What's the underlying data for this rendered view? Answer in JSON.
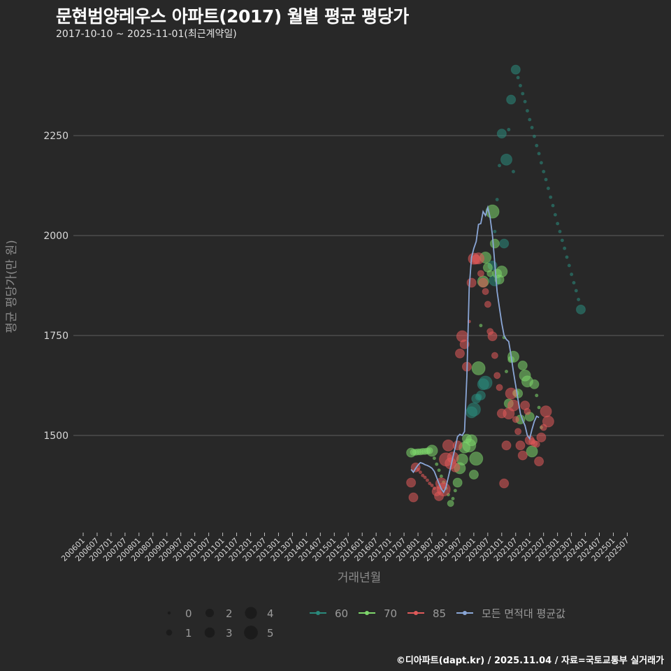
{
  "header": {
    "title": "문현범양레우스 아파트(2017) 월별 평균 평당가",
    "subtitle": "2017-10-10 ~ 2025-11-01(최근계약일)"
  },
  "footer": {
    "credit": "©디아파트(dapt.kr) / 2025.11.04 / 자료=국토교통부 실거래가"
  },
  "colors": {
    "background": "#282828",
    "grid": "#5e5e5e",
    "s60": "#2a8a7c",
    "s70": "#7ed66b",
    "s85": "#e05a5a",
    "mean": "#8aa6d6"
  },
  "chart_data": {
    "type": "scatter",
    "title": "문현범양레우스 아파트(2017) 월별 평균 평당가",
    "subtitle": "2017-10-10 ~ 2025-11-01(최근계약일)",
    "xlabel": "거래년월",
    "ylabel": "평균 평당가(만 원)",
    "ylim": [
      1270,
      2420
    ],
    "yticks": [
      1500,
      1750,
      2000,
      2250
    ],
    "xticks": [
      "200601",
      "200607",
      "200701",
      "200707",
      "200801",
      "200807",
      "200901",
      "200907",
      "201001",
      "201007",
      "201101",
      "201107",
      "201201",
      "201207",
      "201301",
      "201307",
      "201401",
      "201407",
      "201501",
      "201507",
      "201601",
      "201607",
      "201701",
      "201707",
      "201801",
      "201807",
      "201901",
      "201907",
      "202001",
      "202007",
      "202101",
      "202107",
      "202201",
      "202207",
      "202301",
      "202307",
      "202401",
      "202407",
      "202501",
      "202507"
    ],
    "grid": true,
    "legend": {
      "size_title": "",
      "sizes": [
        0,
        1,
        2,
        3,
        4,
        5
      ],
      "series": [
        "60",
        "70",
        "85",
        "모든 면적대 평균값"
      ]
    },
    "series": [
      {
        "name": "60",
        "points": [
          [
            "2019-12",
            1558,
            3
          ],
          [
            "2020-01",
            1565,
            4
          ],
          [
            "2020-02",
            1592,
            2
          ],
          [
            "2020-03",
            1596,
            1
          ],
          [
            "2020-04",
            1600,
            2
          ],
          [
            "2020-05",
            1628,
            3
          ],
          [
            "2020-06",
            1632,
            4
          ],
          [
            "2020-09",
            1925,
            2
          ],
          [
            "2020-10",
            2010,
            0
          ],
          [
            "2020-11",
            2090,
            0
          ],
          [
            "2020-12",
            2175,
            0
          ],
          [
            "2021-01",
            2255,
            2
          ],
          [
            "2021-02",
            1980,
            2
          ],
          [
            "2021-03",
            2190,
            3
          ],
          [
            "2021-04",
            2265,
            0
          ],
          [
            "2021-05",
            2340,
            2
          ],
          [
            "2021-06",
            2160,
            0
          ],
          [
            "2021-07",
            2415,
            2
          ],
          [
            "2021-08",
            2395,
            0
          ],
          [
            "2021-09",
            2375,
            0
          ],
          [
            "2021-10",
            2355,
            0
          ],
          [
            "2021-11",
            2335,
            0
          ],
          [
            "2021-12",
            2312,
            0
          ],
          [
            "2022-01",
            2290,
            0
          ],
          [
            "2022-02",
            2270,
            0
          ],
          [
            "2022-03",
            2248,
            0
          ],
          [
            "2022-04",
            2225,
            0
          ],
          [
            "2022-05",
            2205,
            0
          ],
          [
            "2022-06",
            2182,
            0
          ],
          [
            "2022-07",
            2160,
            0
          ],
          [
            "2022-08",
            2140,
            0
          ],
          [
            "2022-09",
            2118,
            0
          ],
          [
            "2022-10",
            2096,
            0
          ],
          [
            "2022-11",
            2075,
            0
          ],
          [
            "2022-12",
            2052,
            0
          ],
          [
            "2023-01",
            2030,
            0
          ],
          [
            "2023-02",
            2010,
            0
          ],
          [
            "2023-03",
            1988,
            0
          ],
          [
            "2023-04",
            1968,
            0
          ],
          [
            "2023-05",
            1946,
            0
          ],
          [
            "2023-06",
            1925,
            0
          ],
          [
            "2023-07",
            1903,
            0
          ],
          [
            "2023-08",
            1882,
            0
          ],
          [
            "2023-09",
            1862,
            0
          ],
          [
            "2023-10",
            1840,
            0
          ],
          [
            "2023-11",
            1815,
            2
          ],
          [
            "2020-10",
            1888,
            3
          ]
        ]
      },
      {
        "name": "70",
        "points": [
          [
            "2017-10",
            1457,
            2
          ],
          [
            "2017-11",
            1458,
            1
          ],
          [
            "2017-12",
            1458,
            1
          ],
          [
            "2018-01",
            1459,
            1
          ],
          [
            "2018-02",
            1459,
            1
          ],
          [
            "2018-03",
            1460,
            1
          ],
          [
            "2018-04",
            1460,
            1
          ],
          [
            "2018-05",
            1461,
            1
          ],
          [
            "2018-06",
            1462,
            1
          ],
          [
            "2018-07",
            1462,
            3
          ],
          [
            "2018-08",
            1443,
            0
          ],
          [
            "2018-09",
            1428,
            0
          ],
          [
            "2018-10",
            1413,
            0
          ],
          [
            "2018-11",
            1398,
            0
          ],
          [
            "2018-12",
            1383,
            0
          ],
          [
            "2019-01",
            1368,
            0
          ],
          [
            "2019-02",
            1352,
            0
          ],
          [
            "2019-03",
            1330,
            1
          ],
          [
            "2019-04",
            1342,
            0
          ],
          [
            "2019-05",
            1362,
            0
          ],
          [
            "2019-06",
            1382,
            2
          ],
          [
            "2019-07",
            1418,
            3
          ],
          [
            "2019-08",
            1440,
            3
          ],
          [
            "2019-09",
            1470,
            3
          ],
          [
            "2019-10",
            1492,
            2
          ],
          [
            "2019-11",
            1475,
            4
          ],
          [
            "2019-12",
            1488,
            3
          ],
          [
            "2020-01",
            1402,
            2
          ],
          [
            "2020-02",
            1442,
            4
          ],
          [
            "2020-03",
            1668,
            4
          ],
          [
            "2020-04",
            1775,
            0
          ],
          [
            "2020-05",
            1885,
            3
          ],
          [
            "2020-06",
            1945,
            3
          ],
          [
            "2020-07",
            1920,
            2
          ],
          [
            "2020-08",
            1905,
            1
          ],
          [
            "2020-09",
            2060,
            4
          ],
          [
            "2020-10",
            1980,
            2
          ],
          [
            "2020-11",
            1905,
            2
          ],
          [
            "2020-12",
            1890,
            2
          ],
          [
            "2021-01",
            1910,
            3
          ],
          [
            "2021-02",
            1745,
            0
          ],
          [
            "2021-03",
            1660,
            0
          ],
          [
            "2021-04",
            1580,
            2
          ],
          [
            "2021-05",
            1690,
            1
          ],
          [
            "2021-06",
            1697,
            3
          ],
          [
            "2021-07",
            1606,
            1
          ],
          [
            "2021-08",
            1605,
            2
          ],
          [
            "2021-09",
            1540,
            2
          ],
          [
            "2021-10",
            1675,
            2
          ],
          [
            "2021-11",
            1650,
            3
          ],
          [
            "2021-12",
            1635,
            3
          ],
          [
            "2022-01",
            1547,
            2
          ],
          [
            "2022-02",
            1460,
            3
          ],
          [
            "2022-03",
            1628,
            2
          ],
          [
            "2022-04",
            1600,
            0
          ],
          [
            "2022-05",
            1570,
            0
          ],
          [
            "2022-06",
            1520,
            0
          ]
        ]
      },
      {
        "name": "85",
        "points": [
          [
            "2017-10",
            1382,
            2
          ],
          [
            "2017-11",
            1345,
            2
          ],
          [
            "2017-12",
            1420,
            2
          ],
          [
            "2018-01",
            1415,
            0
          ],
          [
            "2018-02",
            1408,
            0
          ],
          [
            "2018-03",
            1400,
            0
          ],
          [
            "2018-04",
            1395,
            0
          ],
          [
            "2018-05",
            1388,
            0
          ],
          [
            "2018-06",
            1380,
            0
          ],
          [
            "2018-07",
            1375,
            0
          ],
          [
            "2018-08",
            1368,
            0
          ],
          [
            "2018-09",
            1360,
            2
          ],
          [
            "2018-10",
            1348,
            2
          ],
          [
            "2018-11",
            1380,
            3
          ],
          [
            "2018-12",
            1365,
            4
          ],
          [
            "2019-01",
            1440,
            4
          ],
          [
            "2019-02",
            1475,
            3
          ],
          [
            "2019-03",
            1430,
            3
          ],
          [
            "2019-04",
            1445,
            3
          ],
          [
            "2019-05",
            1420,
            2
          ],
          [
            "2019-06",
            1475,
            2
          ],
          [
            "2019-07",
            1705,
            2
          ],
          [
            "2019-08",
            1748,
            3
          ],
          [
            "2019-09",
            1728,
            2
          ],
          [
            "2019-10",
            1672,
            2
          ],
          [
            "2019-11",
            1785,
            0
          ],
          [
            "2019-12",
            1882,
            2
          ],
          [
            "2020-01",
            1942,
            3
          ],
          [
            "2020-02",
            1940,
            2
          ],
          [
            "2020-03",
            1943,
            3
          ],
          [
            "2020-04",
            1905,
            1
          ],
          [
            "2020-05",
            1882,
            2
          ],
          [
            "2020-06",
            1860,
            1
          ],
          [
            "2020-07",
            1828,
            1
          ],
          [
            "2020-08",
            1760,
            1
          ],
          [
            "2020-09",
            1748,
            2
          ],
          [
            "2020-10",
            1700,
            1
          ],
          [
            "2020-11",
            1650,
            1
          ],
          [
            "2020-12",
            1620,
            1
          ],
          [
            "2021-01",
            1555,
            2
          ],
          [
            "2021-02",
            1380,
            2
          ],
          [
            "2021-03",
            1475,
            2
          ],
          [
            "2021-04",
            1555,
            3
          ],
          [
            "2021-05",
            1605,
            3
          ],
          [
            "2021-06",
            1575,
            3
          ],
          [
            "2021-07",
            1540,
            1
          ],
          [
            "2021-08",
            1510,
            1
          ],
          [
            "2021-09",
            1475,
            2
          ],
          [
            "2021-10",
            1450,
            2
          ],
          [
            "2021-11",
            1575,
            2
          ],
          [
            "2021-12",
            1560,
            1
          ],
          [
            "2022-01",
            1488,
            2
          ],
          [
            "2022-02",
            1485,
            1
          ],
          [
            "2022-03",
            1480,
            1
          ],
          [
            "2022-04",
            1478,
            1
          ],
          [
            "2022-05",
            1435,
            2
          ],
          [
            "2022-06",
            1495,
            2
          ],
          [
            "2022-07",
            1520,
            1
          ],
          [
            "2022-08",
            1560,
            3
          ],
          [
            "2022-09",
            1535,
            3
          ]
        ]
      },
      {
        "name": "모든 면적대 평균값",
        "points": [
          [
            "2017-10",
            1415
          ],
          [
            "2017-11",
            1408
          ],
          [
            "2017-12",
            1418
          ],
          [
            "2018-01",
            1426
          ],
          [
            "2018-02",
            1432
          ],
          [
            "2018-03",
            1430
          ],
          [
            "2018-04",
            1427
          ],
          [
            "2018-05",
            1425
          ],
          [
            "2018-06",
            1422
          ],
          [
            "2018-07",
            1418
          ],
          [
            "2018-08",
            1410
          ],
          [
            "2018-09",
            1395
          ],
          [
            "2018-10",
            1380
          ],
          [
            "2018-11",
            1366
          ],
          [
            "2018-12",
            1358
          ],
          [
            "2019-01",
            1370
          ],
          [
            "2019-02",
            1395
          ],
          [
            "2019-03",
            1420
          ],
          [
            "2019-04",
            1446
          ],
          [
            "2019-05",
            1470
          ],
          [
            "2019-06",
            1497
          ],
          [
            "2019-07",
            1503
          ],
          [
            "2019-08",
            1500
          ],
          [
            "2019-09",
            1510
          ],
          [
            "2019-10",
            1650
          ],
          [
            "2019-11",
            1870
          ],
          [
            "2019-12",
            1945
          ],
          [
            "2020-01",
            1968
          ],
          [
            "2020-02",
            1985
          ],
          [
            "2020-03",
            2028
          ],
          [
            "2020-04",
            2030
          ],
          [
            "2020-05",
            2060
          ],
          [
            "2020-06",
            2050
          ],
          [
            "2020-07",
            2070
          ],
          [
            "2020-08",
            2045
          ],
          [
            "2020-09",
            2000
          ],
          [
            "2020-10",
            1930
          ],
          [
            "2020-11",
            1860
          ],
          [
            "2020-12",
            1820
          ],
          [
            "2021-01",
            1780
          ],
          [
            "2021-02",
            1750
          ],
          [
            "2021-03",
            1740
          ],
          [
            "2021-04",
            1735
          ],
          [
            "2021-05",
            1700
          ],
          [
            "2021-06",
            1660
          ],
          [
            "2021-07",
            1625
          ],
          [
            "2021-08",
            1590
          ],
          [
            "2021-09",
            1555
          ],
          [
            "2021-10",
            1538
          ],
          [
            "2021-11",
            1525
          ],
          [
            "2021-12",
            1500
          ],
          [
            "2022-01",
            1492
          ],
          [
            "2022-02",
            1515
          ],
          [
            "2022-03",
            1535
          ],
          [
            "2022-04",
            1548
          ],
          [
            "2022-05",
            1545
          ]
        ]
      }
    ]
  }
}
